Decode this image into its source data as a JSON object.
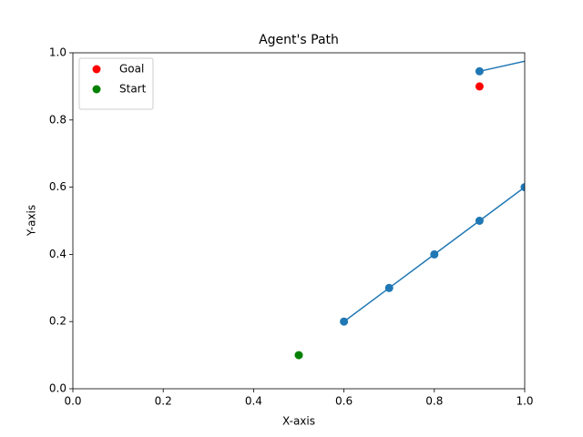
{
  "chart_data": {
    "type": "line",
    "title": "Agent's Path",
    "xlabel": "X-axis",
    "ylabel": "Y-axis",
    "xlim": [
      0,
      1
    ],
    "ylim": [
      0,
      1
    ],
    "xticks": [
      {
        "value": 0,
        "label": "0.0"
      },
      {
        "value": 0.2,
        "label": "0.2"
      },
      {
        "value": 0.4,
        "label": "0.4"
      },
      {
        "value": 0.6,
        "label": "0.6"
      },
      {
        "value": 0.8,
        "label": "0.8"
      },
      {
        "value": 1,
        "label": "1.0"
      }
    ],
    "yticks": [
      {
        "value": 0,
        "label": "0.0"
      },
      {
        "value": 0.2,
        "label": "0.2"
      },
      {
        "value": 0.4,
        "label": "0.4"
      },
      {
        "value": 0.6,
        "label": "0.6"
      },
      {
        "value": 0.8,
        "label": "0.8"
      },
      {
        "value": 1,
        "label": "1.0"
      }
    ],
    "legend": "upper left",
    "path": {
      "color": "#1f77b4",
      "x": [
        0.6,
        0.7,
        0.8,
        0.9,
        1.0,
        null,
        0.9,
        1.1
      ],
      "y": [
        0.2,
        0.3,
        0.4,
        0.5,
        0.6,
        null,
        0.945,
        1.005
      ]
    },
    "points": [
      {
        "name": "Goal",
        "color": "#ff0000",
        "x": [
          0.9
        ],
        "y": [
          0.9
        ]
      },
      {
        "name": "Start",
        "color": "#008000",
        "x": [
          0.5
        ],
        "y": [
          0.1
        ]
      }
    ]
  }
}
